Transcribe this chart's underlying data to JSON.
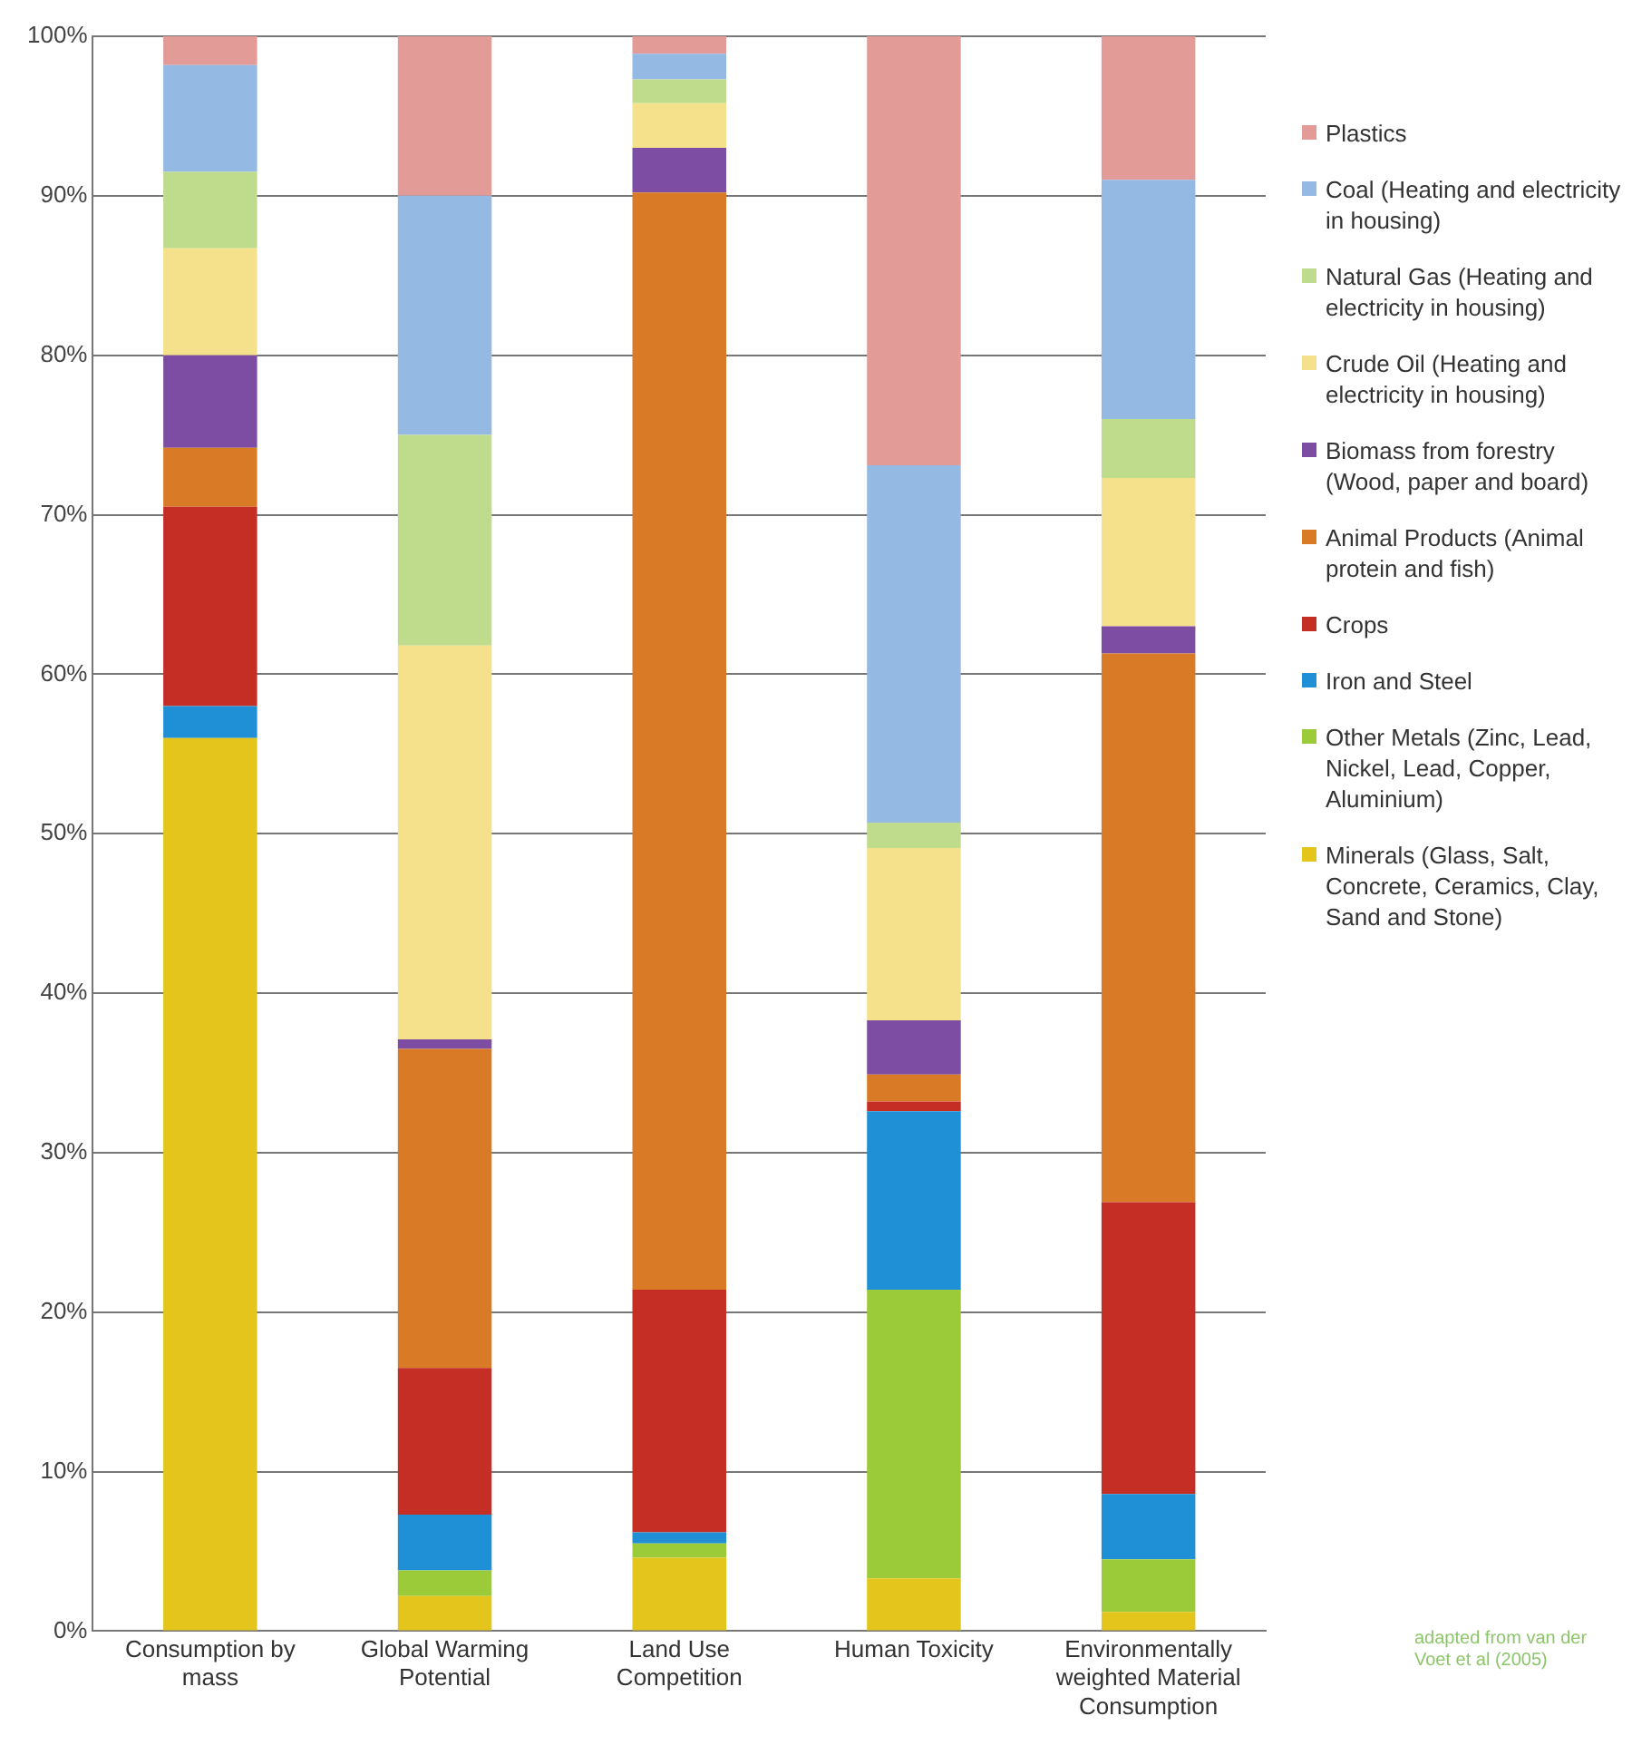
{
  "chart_data": {
    "type": "bar",
    "stacked": true,
    "categories": [
      "Consumption by mass",
      "Global Warming Potential",
      "Land Use Competition",
      "Human Toxicity",
      "Environmentally weighted Material Consumption"
    ],
    "series": [
      {
        "name": "Minerals (Glass, Salt, Concrete, Ceramics, Clay, Sand and Stone)",
        "color": "#e3c51c",
        "values": [
          56,
          2.2,
          4.6,
          3.3,
          1.2
        ]
      },
      {
        "name": "Other Metals (Zinc, Lead, Nickel, Lead, Copper, Aluminium)",
        "color": "#9ccb3a",
        "values": [
          0,
          1.6,
          0.9,
          18.1,
          3.3
        ]
      },
      {
        "name": "Iron and Steel",
        "color": "#1f8fd6",
        "values": [
          2,
          3.5,
          0.7,
          11.2,
          4.1
        ]
      },
      {
        "name": "Crops",
        "color": "#c52e25",
        "values": [
          12.5,
          9.2,
          15.2,
          0.6,
          18.3
        ]
      },
      {
        "name": "Animal Products (Animal protein and fish)",
        "color": "#d87a26",
        "values": [
          3.7,
          20,
          68.8,
          1.7,
          34.4
        ]
      },
      {
        "name": "Biomass from forestry (Wood, paper and board)",
        "color": "#7d4da3",
        "values": [
          5.8,
          0.6,
          2.8,
          3.4,
          1.7
        ]
      },
      {
        "name": "Crude Oil (Heating and electricity in housing)",
        "color": "#f5e08c",
        "values": [
          6.7,
          24.7,
          2.8,
          10.8,
          9.3
        ]
      },
      {
        "name": "Natural Gas (Heating and electricity in housing)",
        "color": "#bfdc8d",
        "values": [
          4.8,
          13.2,
          1.5,
          1.6,
          3.7
        ]
      },
      {
        "name": "Coal (Heating and electricity in housing)",
        "color": "#94b9e3",
        "values": [
          6.7,
          15,
          1.6,
          22.4,
          15
        ]
      },
      {
        "name": "Plastics",
        "color": "#e39b98",
        "values": [
          1.8,
          10,
          1.1,
          26.9,
          9
        ]
      }
    ],
    "ylim": [
      0,
      100
    ],
    "yticks": [
      {
        "value": 0,
        "label": "0%"
      },
      {
        "value": 10,
        "label": "10%"
      },
      {
        "value": 20,
        "label": "20%"
      },
      {
        "value": 30,
        "label": "30%"
      },
      {
        "value": 40,
        "label": "40%"
      },
      {
        "value": 50,
        "label": "50%"
      },
      {
        "value": 60,
        "label": "60%"
      },
      {
        "value": 70,
        "label": "70%"
      },
      {
        "value": 80,
        "label": "80%"
      },
      {
        "value": 90,
        "label": "90%"
      },
      {
        "value": 100,
        "label": "100%"
      }
    ],
    "grid": "y",
    "legend": "right",
    "annotations": [
      "adapted from van der Voet et al (2005)"
    ]
  }
}
